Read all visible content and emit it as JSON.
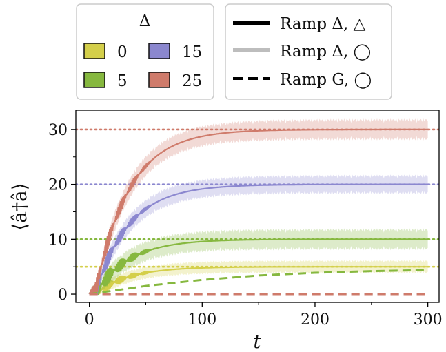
{
  "chart_data": {
    "type": "line",
    "xlabel": "t",
    "ylabel": "⟨â†â⟩",
    "xlim": [
      -12,
      310
    ],
    "ylim": [
      -1.5,
      33.5
    ],
    "xticks": [
      0,
      100,
      200,
      300
    ],
    "yticks": [
      0,
      10,
      20,
      30
    ],
    "grid": false,
    "legend_delta": {
      "title": "Δ",
      "entries": [
        {
          "label": "0",
          "color": "#d4cf4a"
        },
        {
          "label": "15",
          "color": "#8b87cf"
        },
        {
          "label": "5",
          "color": "#86b83f"
        },
        {
          "label": "25",
          "color": "#cf7b6b"
        }
      ]
    },
    "legend_styles": {
      "entries": [
        {
          "label": "Ramp Δ, △",
          "style": "solid-black"
        },
        {
          "label": "Ramp Δ, ◯",
          "style": "solid-gray"
        },
        {
          "label": "Ramp G, ◯",
          "style": "dashed-black"
        }
      ]
    },
    "series": [
      {
        "delta": 0,
        "color": "#d4cf4a",
        "plateau": 5,
        "t0": 5,
        "tau": 30,
        "band": 1.2
      },
      {
        "delta": 5,
        "color": "#86b83f",
        "plateau": 10,
        "t0": 5,
        "tau": 30,
        "band": 2.0
      },
      {
        "delta": 15,
        "color": "#8b87cf",
        "plateau": 20,
        "t0": 5,
        "tau": 30,
        "band": 1.8
      },
      {
        "delta": 25,
        "color": "#cf7b6b",
        "plateau": 30,
        "t0": 5,
        "tau": 30,
        "band": 2.0
      }
    ],
    "reference_lines": [
      {
        "y": 5,
        "color": "#d4cf4a"
      },
      {
        "y": 10,
        "color": "#86b83f"
      },
      {
        "y": 20,
        "color": "#8b87cf"
      },
      {
        "y": 30,
        "color": "#cf7b6b"
      }
    ],
    "dashed_series": [
      {
        "delta": 5,
        "color": "#86b83f",
        "x": [
          0,
          50,
          100,
          150,
          200,
          250,
          300
        ],
        "y": [
          0,
          1.5,
          2.6,
          3.4,
          3.9,
          4.2,
          4.4
        ]
      },
      {
        "delta": 0,
        "color": "#d4cf4a",
        "x": [
          0,
          300
        ],
        "y": [
          0,
          0
        ]
      },
      {
        "delta": 15,
        "color": "#8b87cf",
        "x": [
          0,
          300
        ],
        "y": [
          0,
          0
        ]
      },
      {
        "delta": 25,
        "color": "#cf7b6b",
        "x": [
          0,
          300
        ],
        "y": [
          0,
          0
        ]
      }
    ]
  }
}
